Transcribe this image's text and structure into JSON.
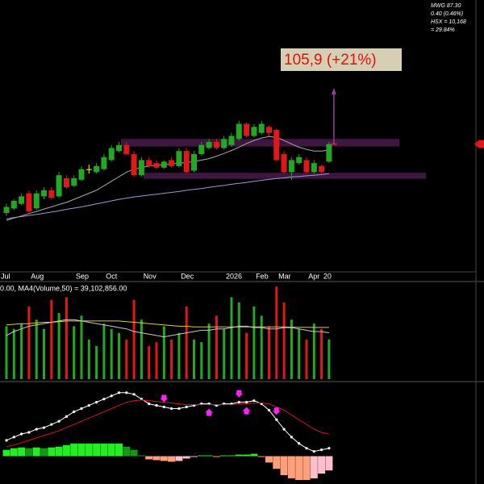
{
  "chart_data": [
    {
      "type": "candlestick",
      "categories": [
        "Jul",
        null,
        null,
        null,
        "Aug",
        null,
        null,
        null,
        null,
        null,
        "Sep",
        null,
        null,
        null,
        "Oct",
        null,
        null,
        null,
        null,
        "Nov",
        null,
        null,
        null,
        null,
        "Dec",
        null,
        null,
        null,
        null,
        null,
        "2026",
        null,
        null,
        null,
        "Feb",
        null,
        null,
        "Mar",
        null,
        null,
        null,
        "Apr",
        null,
        "20"
      ],
      "open": [
        64.5,
        66,
        67.5,
        71,
        66,
        70,
        72,
        70,
        76,
        73.5,
        75.5,
        79,
        78,
        79,
        82,
        85,
        87,
        84,
        77,
        82,
        81,
        79.5,
        82,
        80,
        85,
        78.5,
        84,
        86,
        88,
        86,
        87,
        89,
        94,
        90,
        91,
        93,
        92,
        84,
        78,
        81,
        82,
        78,
        80,
        81.5
      ],
      "high": [
        67.5,
        69,
        71,
        72,
        72,
        73,
        73,
        78,
        77,
        77,
        80,
        80.5,
        81,
        84,
        87,
        88,
        88,
        85,
        83,
        83,
        82,
        82,
        83,
        86,
        86,
        85,
        88,
        89,
        89,
        90,
        91,
        95,
        94.5,
        94,
        95,
        93.5,
        92.5,
        85,
        83,
        84,
        83,
        82,
        80.5,
        88
      ],
      "low": [
        63.5,
        65.5,
        67,
        64,
        65.5,
        69,
        69,
        69.5,
        72.5,
        73,
        75,
        77.5,
        77.5,
        78.5,
        81.5,
        84.5,
        83.5,
        76.5,
        76.5,
        79.5,
        79,
        79,
        79.5,
        79.5,
        77.5,
        78,
        83.5,
        85.5,
        85.5,
        85.5,
        86.5,
        88.5,
        89.5,
        89.5,
        90.5,
        90,
        81.5,
        77.5,
        75.5,
        80.5,
        77.5,
        77.5,
        77.5,
        81
      ],
      "close": [
        66.5,
        68.5,
        70,
        65,
        71,
        72,
        69.5,
        77,
        73,
        76,
        79,
        79,
        80,
        83,
        86,
        87,
        84,
        77,
        82,
        80,
        79.5,
        81.5,
        80,
        85,
        78,
        84,
        87,
        88,
        86,
        89,
        90,
        94,
        90,
        93,
        94,
        91,
        82,
        78,
        82,
        83,
        78,
        81,
        78,
        87.3
      ],
      "up_color": "#22a822",
      "down_color": "#e01818",
      "doji_color": "#ffff00",
      "lines": [
        {
          "color": "#a8a8a8",
          "values": [
            62,
            62.8,
            63.5,
            64.3,
            65,
            65.8,
            66.5,
            67.3,
            68,
            69,
            70,
            71,
            72,
            73.5,
            75,
            76.5,
            78,
            79,
            79.5,
            80,
            80.3,
            80.5,
            80.7,
            81,
            81.2,
            81.5,
            82,
            82.5,
            83.3,
            84.2,
            85.2,
            86.3,
            87.5,
            88.5,
            89.3,
            89.8,
            89.5,
            88.5,
            87.3,
            86.3,
            85.5,
            85,
            85,
            85.3
          ]
        },
        {
          "color": "#9a9ad0",
          "values": [
            62.5,
            63,
            63.3,
            63.7,
            64,
            64.4,
            64.8,
            65.2,
            65.7,
            66.1,
            66.5,
            67,
            67.5,
            68,
            68.5,
            69,
            69.4,
            69.8,
            70.1,
            70.4,
            70.7,
            71,
            71.3,
            71.6,
            72,
            72.3,
            72.6,
            73,
            73.3,
            73.6,
            74,
            74.3,
            74.6,
            75,
            75.3,
            75.6,
            75.9,
            76.1,
            76.4,
            76.6,
            76.8,
            77,
            77.2,
            77.5
          ]
        }
      ],
      "bands": [
        {
          "range": [
            86.5,
            89
          ],
          "color": "#4a1a4e"
        },
        {
          "range": [
            75.8,
            77.8
          ],
          "color": "#4a1a4e"
        }
      ],
      "target": {
        "value": 105.9,
        "label": "105,9  (+21%)",
        "color": "#9a3aa0"
      },
      "info": [
        "MWG 87.30",
        "0.40 (0.46%)",
        "HSX = 10,168",
        "= 29.84%"
      ],
      "ylim": [
        45,
        135
      ]
    },
    {
      "type": "volume",
      "title": "0.00, MA4(Volume,50) = 39,102,856.00",
      "values": [
        40000000,
        38000000,
        42000000,
        55000000,
        45000000,
        38000000,
        60000000,
        50000000,
        62000000,
        40000000,
        48000000,
        30000000,
        25000000,
        42000000,
        38000000,
        35000000,
        30000000,
        60000000,
        45000000,
        25000000,
        28000000,
        40000000,
        30000000,
        35000000,
        55000000,
        30000000,
        28000000,
        42000000,
        48000000,
        38000000,
        62000000,
        58000000,
        35000000,
        55000000,
        48000000,
        40000000,
        70000000,
        58000000,
        45000000,
        38000000,
        30000000,
        42000000,
        38000000,
        30000000
      ],
      "series": [
        {
          "color": "#d8d020",
          "values": [
            41000000,
            41500000,
            42000000,
            42000000,
            42500000,
            43000000,
            43000000,
            43500000,
            44000000,
            44000000,
            44000000,
            44000000,
            44000000,
            44000000,
            44000000,
            44000000,
            43500000,
            43000000,
            42500000,
            42000000,
            41500000,
            41000000,
            40500000,
            40000000,
            40000000,
            39500000,
            39500000,
            39500000,
            39500000,
            39500000,
            39500000,
            39500000,
            39500000,
            39500000,
            39500000,
            39500000,
            39500000,
            39500000,
            39300000,
            39200000,
            39200000,
            39100000,
            39100000,
            39102856
          ]
        },
        {
          "color": "#c8c8c8",
          "values": [
            33000000,
            36000000,
            38000000,
            40000000,
            41000000,
            42000000,
            43000000,
            44000000,
            45000000,
            45000000,
            44000000,
            43000000,
            42000000,
            41000000,
            40000000,
            39000000,
            38000000,
            36000000,
            35000000,
            34000000,
            33000000,
            32000000,
            33000000,
            34000000,
            35000000,
            36000000,
            37000000,
            37000000,
            38000000,
            38000000,
            39000000,
            40000000,
            40000000,
            39000000,
            39000000,
            38000000,
            38000000,
            39000000,
            39000000,
            38000000,
            37000000,
            36000000,
            36000000,
            35000000
          ]
        }
      ],
      "ylim": [
        0,
        72000000
      ]
    },
    {
      "type": "macd",
      "series": [
        {
          "color": "#ffffff",
          "markers": true,
          "values": [
            1.0,
            1.2,
            1.4,
            1.5,
            1.7,
            1.8,
            2.0,
            2.2,
            2.5,
            2.8,
            3.0,
            3.2,
            3.4,
            3.6,
            3.8,
            4.0,
            4.0,
            3.9,
            3.6,
            3.3,
            3.2,
            3.1,
            3.0,
            3.0,
            3.1,
            3.2,
            3.3,
            3.3,
            3.2,
            3.3,
            3.3,
            3.4,
            3.4,
            3.5,
            3.3,
            2.9,
            2.3,
            1.7,
            1.2,
            0.8,
            0.5,
            0.3,
            0.4,
            0.5
          ]
        },
        {
          "color": "#d01818",
          "markers": false,
          "values": [
            0.6,
            0.7,
            0.85,
            1.0,
            1.15,
            1.3,
            1.45,
            1.6,
            1.8,
            2.0,
            2.2,
            2.4,
            2.6,
            2.8,
            3.0,
            3.2,
            3.4,
            3.5,
            3.55,
            3.5,
            3.45,
            3.4,
            3.35,
            3.3,
            3.25,
            3.25,
            3.25,
            3.25,
            3.25,
            3.25,
            3.25,
            3.3,
            3.3,
            3.35,
            3.35,
            3.3,
            3.1,
            2.9,
            2.6,
            2.3,
            2.0,
            1.7,
            1.5,
            1.4
          ]
        }
      ],
      "histogram": [
        0.4,
        0.5,
        0.55,
        0.5,
        0.55,
        0.5,
        0.55,
        0.6,
        0.7,
        0.8,
        0.8,
        0.8,
        0.8,
        0.8,
        0.8,
        0.8,
        0.6,
        0.4,
        0.05,
        -0.2,
        -0.25,
        -0.3,
        -0.35,
        -0.3,
        -0.15,
        -0.05,
        0.05,
        0.05,
        -0.05,
        0.05,
        0.05,
        0.1,
        0.1,
        0.15,
        -0.05,
        -0.4,
        -0.8,
        -1.2,
        -1.4,
        -1.5,
        -1.5,
        -1.4,
        -1.1,
        -0.9
      ],
      "hist_colors": [
        "#22ee22",
        "#119911",
        "#ffa07a",
        "#ffc0cc"
      ],
      "sell_signals": [
        21,
        31,
        36
      ],
      "buy_signals": [
        27,
        32
      ],
      "signal_color": "#ff22ff",
      "ylim": [
        -1.5,
        4.5
      ]
    }
  ]
}
